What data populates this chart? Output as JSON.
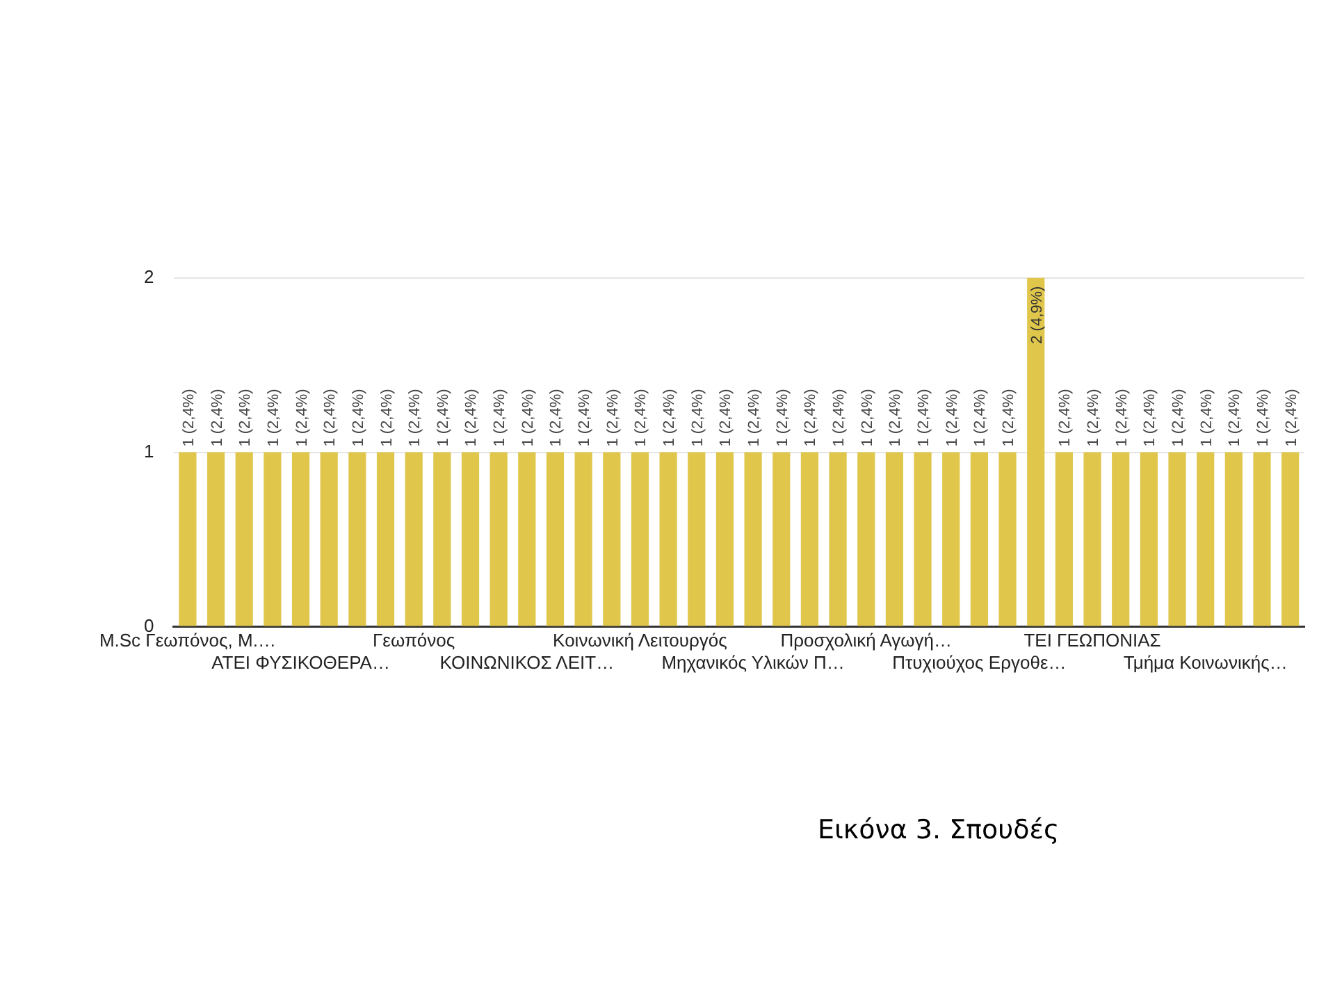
{
  "chart_data": {
    "type": "bar",
    "categories": [
      "M.Sc Γεωπόνος, Μ.…",
      null,
      null,
      null,
      "ΑΤΕΙ ΦΥΣΙΚΟΘΕΡΑ…",
      null,
      null,
      null,
      "Γεωπόνος",
      null,
      null,
      null,
      "ΚΟΙΝΩΝΙΚΟΣ ΛΕΙΤ…",
      null,
      null,
      null,
      "Κοινωνική Λειτουργός",
      null,
      null,
      null,
      "Μηχανικός Υλικών Π…",
      null,
      null,
      null,
      "Προσχολική Αγωγή…",
      null,
      null,
      null,
      "Πτυχιούχος Εργοθε…",
      null,
      null,
      null,
      "ΤΕΙ ΓΕΩΠΟΝΙΑΣ",
      null,
      null,
      null,
      "Τμήμα Κοινωνικής…",
      null,
      null,
      null
    ],
    "values": [
      1,
      1,
      1,
      1,
      1,
      1,
      1,
      1,
      1,
      1,
      1,
      1,
      1,
      1,
      1,
      1,
      1,
      1,
      1,
      1,
      1,
      1,
      1,
      1,
      1,
      1,
      1,
      1,
      1,
      1,
      2,
      1,
      1,
      1,
      1,
      1,
      1,
      1,
      1,
      1
    ],
    "value_labels": [
      "1 (2,4%)",
      "1 (2,4%)",
      "1 (2,4%)",
      "1 (2,4%)",
      "1 (2,4%)",
      "1 (2,4%)",
      "1 (2,4%)",
      "1 (2,4%)",
      "1 (2,4%)",
      "1 (2,4%)",
      "1 (2,4%)",
      "1 (2,4%)",
      "1 (2,4%)",
      "1 (2,4%)",
      "1 (2,4%)",
      "1 (2,4%)",
      "1 (2,4%)",
      "1 (2,4%)",
      "1 (2,4%)",
      "1 (2,4%)",
      "1 (2,4%)",
      "1 (2,4%)",
      "1 (2,4%)",
      "1 (2,4%)",
      "1 (2,4%)",
      "1 (2,4%)",
      "1 (2,4%)",
      "1 (2,4%)",
      "1 (2,4%)",
      "1 (2,4%)",
      "2 (4,9%)",
      "1 (2,4%)",
      "1 (2,4%)",
      "1 (2,4%)",
      "1 (2,4%)",
      "1 (2,4%)",
      "1 (2,4%)",
      "1 (2,4%)",
      "1 (2,4%)",
      "1 (2,4%)"
    ],
    "color": "#e0c74c",
    "ylim": [
      0,
      2
    ],
    "yticks": [
      0,
      1,
      2
    ],
    "grid": "y",
    "annotations": [
      "Εικόνα 3. Σπουδές"
    ]
  }
}
